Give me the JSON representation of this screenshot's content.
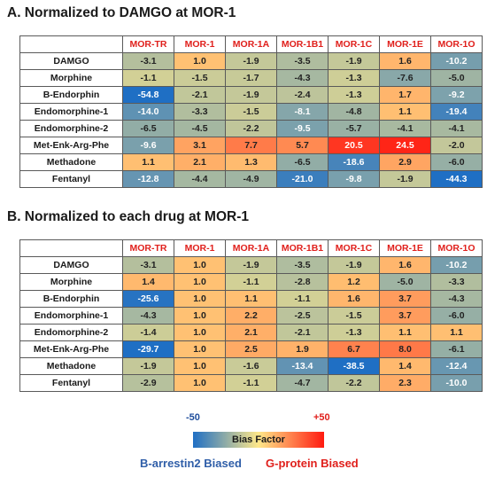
{
  "colors": {
    "blue": "#1f6fc4",
    "yellow": "#ffe88a",
    "red": "#ff1a10",
    "header_text": "#e0201c"
  },
  "chart_data": [
    {
      "type": "heatmap",
      "title": "A. Normalized to DAMGO at MOR-1",
      "columns": [
        "MOR-TR",
        "MOR-1",
        "MOR-1A",
        "MOR-1B1",
        "MOR-1C",
        "MOR-1E",
        "MOR-1O"
      ],
      "rows": [
        {
          "label": "DAMGO",
          "values": [
            "-3.1",
            "1.0",
            "-1.9",
            "-3.5",
            "-1.9",
            "1.6",
            "-10.2"
          ]
        },
        {
          "label": "Morphine",
          "values": [
            "-1.1",
            "-1.5",
            "-1.7",
            "-4.3",
            "-1.3",
            "-7.6",
            "-5.0"
          ]
        },
        {
          "label": "B-Endorphin",
          "values": [
            "-54.8",
            "-2.1",
            "-1.9",
            "-2.4",
            "-1.3",
            "1.7",
            "-9.2"
          ]
        },
        {
          "label": "Endomorphine-1",
          "values": [
            "-14.0",
            "-3.3",
            "-1.5",
            "-8.1",
            "-4.8",
            "1.1",
            "-19.4"
          ]
        },
        {
          "label": "Endomorphine-2",
          "values": [
            "-6.5",
            "-4.5",
            "-2.2",
            "-9.5",
            "-5.7",
            "-4.1",
            "-4.1"
          ]
        },
        {
          "label": "Met-Enk-Arg-Phe",
          "values": [
            "-9.6",
            "3.1",
            "7.7",
            "5.7",
            "20.5",
            "24.5",
            "-2.0"
          ]
        },
        {
          "label": "Methadone",
          "values": [
            "1.1",
            "2.1",
            "1.3",
            "-6.5",
            "-18.6",
            "2.9",
            "-6.0"
          ]
        },
        {
          "label": "Fentanyl",
          "values": [
            "-12.8",
            "-4.4",
            "-4.9",
            "-21.0",
            "-9.8",
            "-1.9",
            "-44.3"
          ]
        }
      ],
      "color_range": [
        -50,
        50
      ]
    },
    {
      "type": "heatmap",
      "title": "B. Normalized to each drug at MOR-1",
      "columns": [
        "MOR-TR",
        "MOR-1",
        "MOR-1A",
        "MOR-1B1",
        "MOR-1C",
        "MOR-1E",
        "MOR-1O"
      ],
      "rows": [
        {
          "label": "DAMGO",
          "values": [
            "-3.1",
            "1.0",
            "-1.9",
            "-3.5",
            "-1.9",
            "1.6",
            "-10.2"
          ]
        },
        {
          "label": "Morphine",
          "values": [
            "1.4",
            "1.0",
            "-1.1",
            "-2.8",
            "1.2",
            "-5.0",
            "-3.3"
          ]
        },
        {
          "label": "B-Endorphin",
          "values": [
            "-25.6",
            "1.0",
            "1.1",
            "-1.1",
            "1.6",
            "3.7",
            "-4.3"
          ]
        },
        {
          "label": "Endomorphine-1",
          "values": [
            "-4.3",
            "1.0",
            "2.2",
            "-2.5",
            "-1.5",
            "3.7",
            "-6.0"
          ]
        },
        {
          "label": "Endomorphine-2",
          "values": [
            "-1.4",
            "1.0",
            "2.1",
            "-2.1",
            "-1.3",
            "1.1",
            "1.1"
          ]
        },
        {
          "label": "Met-Enk-Arg-Phe",
          "values": [
            "-29.7",
            "1.0",
            "2.5",
            "1.9",
            "6.7",
            "8.0",
            "-6.1"
          ]
        },
        {
          "label": "Methadone",
          "values": [
            "-1.9",
            "1.0",
            "-1.6",
            "-13.4",
            "-38.5",
            "1.4",
            "-12.4"
          ]
        },
        {
          "label": "Fentanyl",
          "values": [
            "-2.9",
            "1.0",
            "-1.1",
            "-4.7",
            "-2.2",
            "2.3",
            "-10.0"
          ]
        }
      ],
      "color_range": [
        -50,
        50
      ]
    }
  ],
  "legend": {
    "min_label": "-50",
    "max_label": "+50",
    "title": "Bias Factor",
    "left_label": "B-arrestin2 Biased",
    "right_label": "G-protein Biased"
  }
}
